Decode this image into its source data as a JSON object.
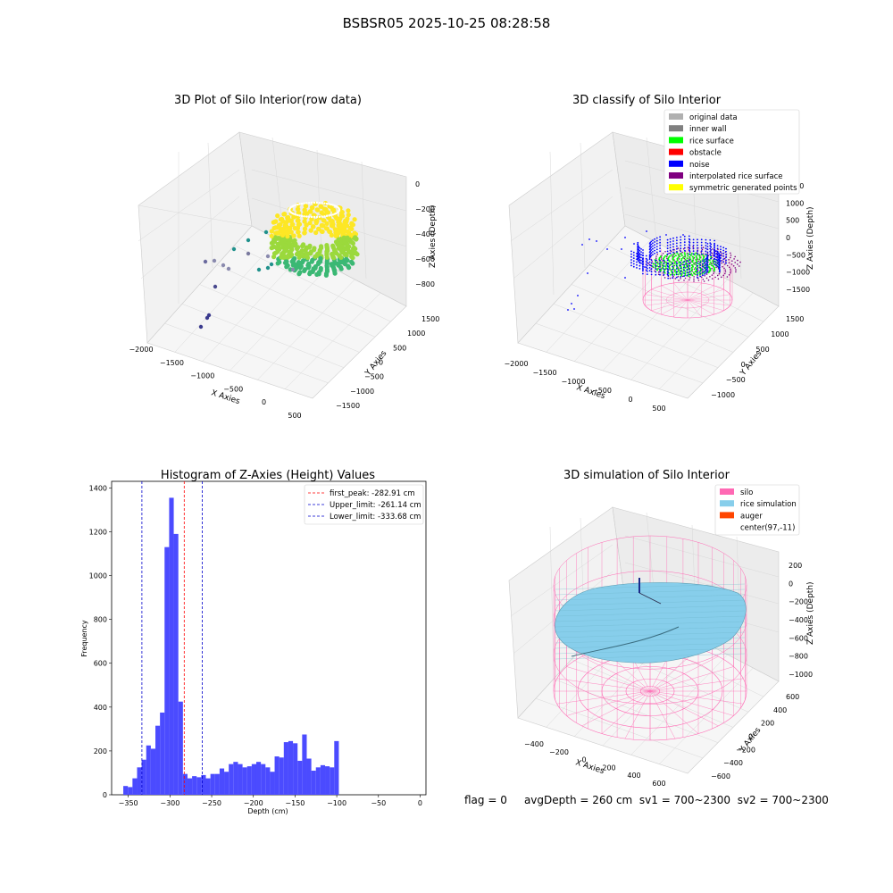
{
  "figure": {
    "suptitle": "BSBSR05 2025-10-25 08:28:58",
    "status": {
      "flag": "flag = 0",
      "avg_depth": "avgDepth = 260 cm",
      "sv1": "sv1 = 700~2300",
      "sv2": "sv2 = 700~2300"
    }
  },
  "colors": {
    "grid_pane": "#f2f2f2",
    "pane_line": "#cccccc",
    "hist_bar": "#4b4bff",
    "peak_line": "#ff0000",
    "limit_line": "#0000cc",
    "silo": "#ff69b4",
    "rice": "#87ceeb",
    "auger": "#ff4500",
    "noise": "#0000ff",
    "rice_surface": "#00ff00",
    "interp": "#800080",
    "raw_low": "#440154",
    "raw_mid": "#21918c",
    "raw_high": "#fde725"
  },
  "chart_data": [
    {
      "type": "scatter",
      "title": "3D Plot of Silo Interior(row data)",
      "xlabel": "X Axies",
      "ylabel": "Y Axies",
      "zlabel": "Z Axies (Depth)",
      "xticks": [
        "−2000",
        "−1500",
        "−1000",
        "−500",
        "0",
        "500"
      ],
      "yticks": [
        "−1500",
        "−1000",
        "−500",
        "0",
        "500",
        "1000",
        "1500"
      ],
      "zticks": [
        "0",
        "−200",
        "−400",
        "−600",
        "−800"
      ],
      "colormap": "viridis"
    },
    {
      "type": "scatter",
      "title": "3D classify of Silo Interior",
      "xlabel": "X Axies",
      "ylabel": "Y Axies",
      "zlabel": "Z Axies (Depth)",
      "xticks": [
        "−2000",
        "−1500",
        "−1000",
        "−500",
        "0",
        "500"
      ],
      "yticks": [
        "−1000",
        "−500",
        "0",
        "500",
        "1000",
        "1500"
      ],
      "zticks": [
        "1500",
        "1000",
        "500",
        "0",
        "−500",
        "−1000",
        "−1500"
      ],
      "legend": [
        {
          "label": "original data",
          "color": "#b0b0b0"
        },
        {
          "label": "inner wall",
          "color": "#808080"
        },
        {
          "label": "rice surface",
          "color": "#00ff00"
        },
        {
          "label": "obstacle",
          "color": "#ff0000"
        },
        {
          "label": "noise",
          "color": "#0000ff"
        },
        {
          "label": "interpolated rice surface",
          "color": "#800080"
        },
        {
          "label": "symmetric generated points",
          "color": "#ffff00"
        }
      ],
      "legend_position": "top-right"
    },
    {
      "type": "bar",
      "title": "Histogram of Z-Axies (Height) Values",
      "xlabel": "Depth (cm)",
      "ylabel": "Frequency",
      "xlim": [
        -370,
        7
      ],
      "ylim": [
        0,
        1430
      ],
      "xticks": [
        -350,
        -300,
        -250,
        -200,
        -150,
        -100,
        -50,
        0
      ],
      "yticks": [
        0,
        200,
        400,
        600,
        800,
        1000,
        1200,
        1400
      ],
      "bin_start": -356,
      "bin_width": 5.5,
      "values": [
        40,
        35,
        75,
        125,
        160,
        225,
        210,
        315,
        375,
        1130,
        1355,
        1190,
        425,
        95,
        75,
        85,
        80,
        90,
        75,
        95,
        95,
        120,
        105,
        140,
        150,
        140,
        125,
        130,
        140,
        150,
        140,
        125,
        105,
        175,
        170,
        240,
        245,
        235,
        155,
        275,
        165,
        110,
        125,
        135,
        130,
        125,
        245
      ],
      "lines": [
        {
          "label": "first_peak: -282.91 cm",
          "x": -282.91,
          "color": "#ff0000"
        },
        {
          "label": "Upper_limit: -261.14 cm",
          "x": -261.14,
          "color": "#0000cc"
        },
        {
          "label": "Lower_limit: -333.68 cm",
          "x": -333.68,
          "color": "#0000cc"
        }
      ],
      "legend_position": "top-right"
    },
    {
      "type": "scatter",
      "title": "3D simulation of Silo Interior",
      "xlabel": "X Axies",
      "ylabel": "Y Axies",
      "zlabel": "Z Axies (Depth)",
      "xticks": [
        "−400",
        "−200",
        "0",
        "200",
        "400",
        "600"
      ],
      "yticks": [
        "−600",
        "−400",
        "−200",
        "0",
        "200",
        "400",
        "600"
      ],
      "zticks": [
        "200",
        "0",
        "−200",
        "−400",
        "−600",
        "−800",
        "−1000"
      ],
      "legend": [
        {
          "label": "silo",
          "color": "#ff69b4"
        },
        {
          "label": "rice simulation",
          "color": "#87ceeb"
        },
        {
          "label": "auger",
          "color": "#ff4500"
        },
        {
          "label": "center(97,-11)",
          "color": ""
        }
      ],
      "legend_position": "top-right"
    }
  ]
}
